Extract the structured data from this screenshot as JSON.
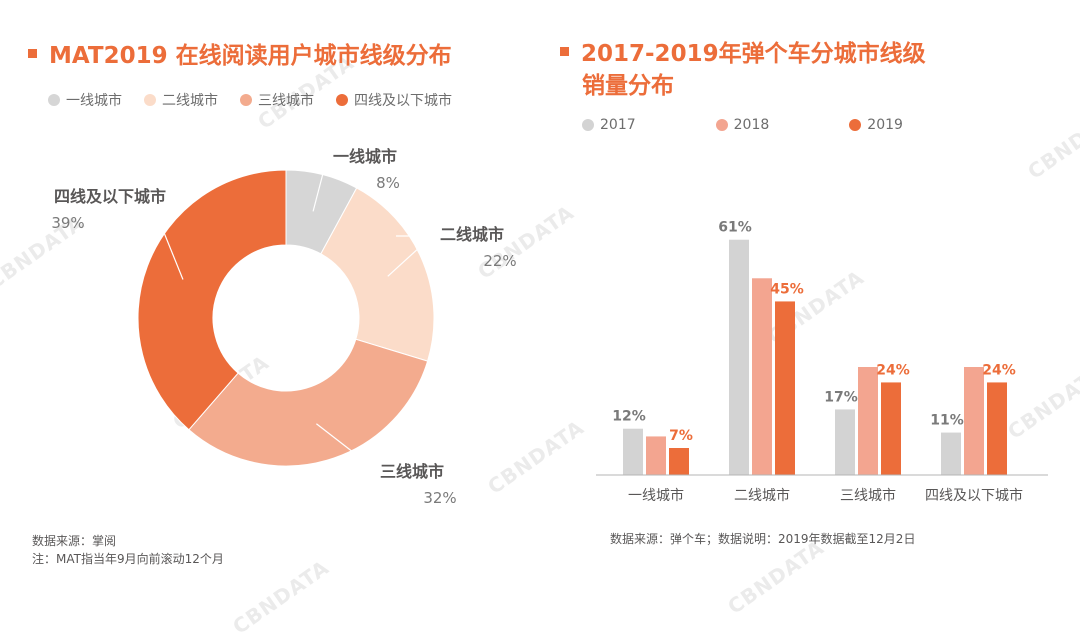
{
  "colors": {
    "accent": "#ec6d3a",
    "tier1": "#d6d6d6",
    "tier2": "#fbdcc9",
    "tier3": "#f3ab8e",
    "tier4": "#ec6d3a",
    "y2017": "#d3d3d3",
    "y2018": "#f3a590",
    "y2019": "#ec6d3a",
    "label_dark": "#595757",
    "label_gray": "#7a7a7a"
  },
  "watermark_text": "CBNDATA",
  "left": {
    "title": "MAT2019 在线阅读用户城市线级分布",
    "legend": [
      {
        "label": "一线城市",
        "color": "#d6d6d6"
      },
      {
        "label": "二线城市",
        "color": "#fbdcc9"
      },
      {
        "label": "三线城市",
        "color": "#f3ab8e"
      },
      {
        "label": "四线及以下城市",
        "color": "#ec6d3a"
      }
    ],
    "source_line1": "数据来源：掌阅",
    "source_line2": "注：MAT指当年9月向前滚动12个月"
  },
  "right": {
    "title_line1": "2017-2019年弹个车分城市线级",
    "title_line2": "销量分布",
    "legend": [
      {
        "label": "2017",
        "color": "#d3d3d3"
      },
      {
        "label": "2018",
        "color": "#f3a590"
      },
      {
        "label": "2019",
        "color": "#ec6d3a"
      }
    ],
    "source": "数据来源：弹个车；数据说明：2019年数据截至12月2日"
  },
  "chart_data": [
    {
      "type": "pie",
      "variant": "donut",
      "title": "MAT2019 在线阅读用户城市线级分布",
      "categories": [
        "一线城市",
        "二线城市",
        "三线城市",
        "四线及以下城市"
      ],
      "values": [
        8,
        22,
        32,
        39
      ],
      "value_labels": [
        "8%",
        "22%",
        "32%",
        "39%"
      ],
      "unit": "%"
    },
    {
      "type": "bar",
      "title": "2017-2019年弹个车分城市线级销量分布",
      "categories": [
        "一线城市",
        "二线城市",
        "三线城市",
        "四线及以下城市"
      ],
      "series": [
        {
          "name": "2017",
          "values": [
            12,
            61,
            17,
            11
          ],
          "labels": [
            "12%",
            "61%",
            "17%",
            "11%"
          ]
        },
        {
          "name": "2018",
          "values": [
            10,
            51,
            28,
            28
          ],
          "labels": [
            "",
            "",
            "",
            ""
          ]
        },
        {
          "name": "2019",
          "values": [
            7,
            45,
            24,
            24
          ],
          "labels": [
            "7%",
            "45%",
            "24%",
            "24%"
          ]
        }
      ],
      "ylim": [
        0,
        70
      ],
      "unit": "%"
    }
  ]
}
